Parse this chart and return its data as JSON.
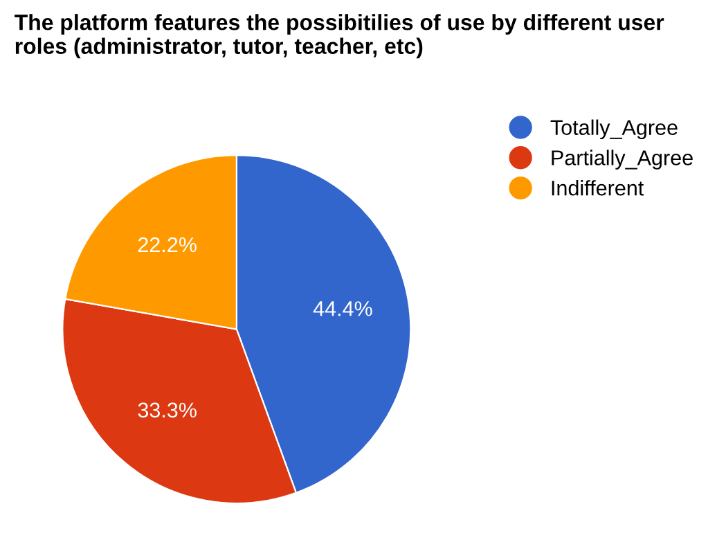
{
  "chart_data": {
    "type": "pie",
    "title": "The platform features the possibitilies of use by different user roles (administrator, tutor, teacher, etc)",
    "categories": [
      "Totally_Agree",
      "Partially_Agree",
      "Indifferent"
    ],
    "values": [
      44.4,
      33.3,
      22.2
    ],
    "colors": [
      "#3366cc",
      "#dc3912",
      "#ff9900"
    ],
    "value_labels": [
      "44.4%",
      "33.3%",
      "22.2%"
    ],
    "legend": "top right"
  }
}
